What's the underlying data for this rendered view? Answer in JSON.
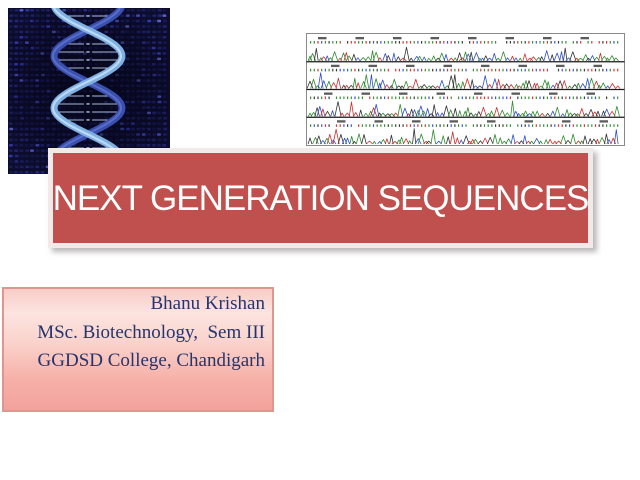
{
  "slide": {
    "background": "#ffffff",
    "title_banner": {
      "text": "NEXT GENERATION SEQUENCES",
      "fill": "#c0504d",
      "border_color": "#f1eae9",
      "text_color": "#ffffff"
    },
    "author_box": {
      "lines": [
        "Bhanu Krishan",
        "MSc. Biotechnology,  Sem III",
        "GGDSD College, Chandigarh"
      ],
      "text_color": "#24356e",
      "border_color": "#e0958e",
      "gradient_top": "#f8ccc6",
      "gradient_bottom": "#f2a29b"
    },
    "images": {
      "dna_helix": {
        "alt": "dna-double-helix-on-woven-blue-background",
        "bg": "#0d0d2e",
        "dot_hue": 238,
        "strand_front": "#7fb0e2",
        "strand_front_highlight": "#cfe6fa",
        "strand_back": "#3a4fae",
        "strand_back_highlight": "#6e84d8",
        "rung": "#aab8d4"
      },
      "chromatogram": {
        "alt": "sanger-sequencing-chromatogram-traces",
        "panels": 4,
        "background": "#ffffff",
        "border": "#8a8a8a",
        "separator": "#1a1a1a",
        "number_mark": "#4a4a4a",
        "trace_colors": [
          "#2e8b2e",
          "#cc2f2f",
          "#2f4fcc",
          "#333333"
        ]
      }
    }
  }
}
